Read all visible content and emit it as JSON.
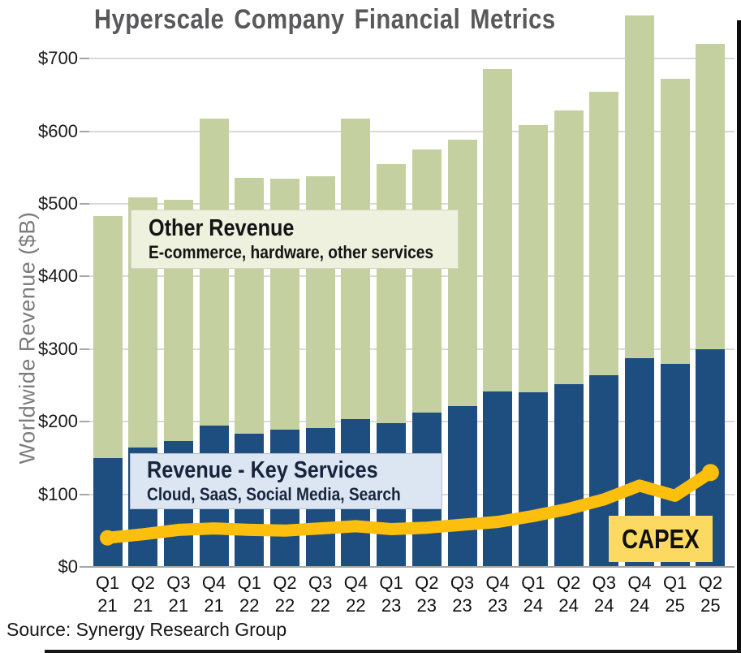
{
  "title": "Hyperscale Company Financial Metrics",
  "source": "Source: Synergy Research Group",
  "y_axis": {
    "title": "Worldwide Revenue ($B)",
    "tick_prefix": "$",
    "ticks": [
      0,
      100,
      200,
      300,
      400,
      500,
      600,
      700
    ]
  },
  "annotations": {
    "other_revenue": {
      "title": "Other Revenue",
      "subtitle": "E-commerce, hardware, other services"
    },
    "key_services": {
      "title": "Revenue - Key Services",
      "subtitle": "Cloud, SaaS, Social Media, Search"
    },
    "capex": {
      "label": "CAPEX"
    }
  },
  "colors": {
    "key_services_bar": "#1e4e80",
    "other_revenue_bar": "#c5d0a0",
    "capex_line": "#fcbf0e",
    "capex_box_bg": "#fcd961",
    "other_box_bg": "#eef1de",
    "key_box_bg": "#dce6f2",
    "title_text": "#59595b",
    "gridline": "#d9d9d9",
    "axis_text": "#1a1a1a",
    "y_axis_title_text": "#7c7c7c"
  },
  "chart_data": {
    "type": "bar",
    "subtype": "stacked-bar-with-line",
    "title": "Hyperscale Company Financial Metrics",
    "xlabel": "",
    "ylabel": "Worldwide Revenue ($B)",
    "ylim": [
      0,
      780
    ],
    "grid": true,
    "legend_position": "inline-annotations",
    "categories": [
      "Q1 21",
      "Q2 21",
      "Q3 21",
      "Q4 21",
      "Q1 22",
      "Q2 22",
      "Q3 22",
      "Q4 22",
      "Q1 23",
      "Q2 23",
      "Q3 23",
      "Q4 23",
      "Q1 24",
      "Q2 24",
      "Q3 24",
      "Q4 24",
      "Q1 25",
      "Q2 25"
    ],
    "series": [
      {
        "name": "Revenue - Key Services",
        "detail": "Cloud, SaaS, Social Media, Search",
        "render": "bar",
        "stack_order": 1,
        "values": [
          150,
          164,
          173,
          195,
          184,
          189,
          191,
          204,
          198,
          213,
          222,
          242,
          240,
          252,
          264,
          287,
          280,
          300
        ]
      },
      {
        "name": "Other Revenue",
        "detail": "E-commerce, hardware, other services",
        "render": "bar",
        "stack_order": 2,
        "values": [
          333,
          345,
          333,
          422,
          352,
          346,
          347,
          414,
          357,
          362,
          366,
          444,
          368,
          377,
          390,
          473,
          392,
          420
        ]
      },
      {
        "name": "CAPEX",
        "render": "line",
        "values": [
          40,
          45,
          51,
          53,
          51,
          50,
          53,
          56,
          52,
          54,
          58,
          62,
          70,
          80,
          93,
          112,
          98,
          130
        ]
      }
    ],
    "stacked_totals": [
      483,
      509,
      506,
      617,
      536,
      535,
      538,
      618,
      555,
      575,
      588,
      686,
      608,
      629,
      654,
      760,
      672,
      720
    ]
  }
}
